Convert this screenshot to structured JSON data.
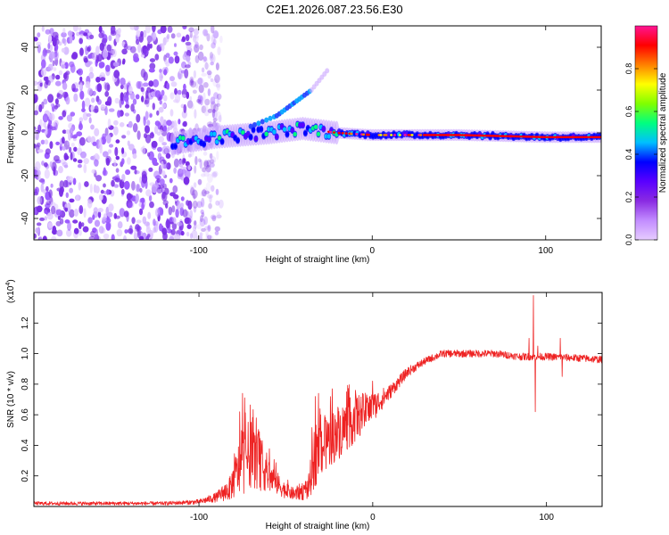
{
  "figure_title": "C2E1.2026.087.23.56.E30",
  "chart_data": [
    {
      "type": "heatmap",
      "title": "C2E1.2026.087.23.56.E30",
      "xlabel": "Height of straight line (km)",
      "ylabel": "Frequency (Hz)",
      "xlim": [
        -195,
        132
      ],
      "ylim": [
        -50,
        50
      ],
      "x_ticks": [
        -100,
        0,
        100
      ],
      "x_tick_labels": [
        "-100",
        "0",
        "100"
      ],
      "y_ticks": [
        -40,
        -20,
        0,
        20,
        40
      ],
      "y_tick_labels": [
        "-40",
        "-20",
        "0",
        "20",
        "40"
      ],
      "colorbar": {
        "label": "Normalized spectral amplitude",
        "range": [
          0,
          1
        ],
        "ticks": [
          0.0,
          0.2,
          0.4,
          0.6,
          0.8
        ],
        "tick_labels": [
          "0.0",
          "0.2",
          "0.4",
          "0.6",
          "0.8"
        ],
        "colors": [
          "#e6ccff",
          "#c28cff",
          "#8a2be2",
          "#5a00ff",
          "#0000ff",
          "#00bfff",
          "#00ff80",
          "#80ff00",
          "#ffff00",
          "#ff8000",
          "#ff0000",
          "#ff1493"
        ]
      },
      "features": {
        "noise_region_x": [
          -195,
          -95
        ],
        "main_line_start_x": -115,
        "main_line_freq_hz": [
          [
            -115,
            -5
          ],
          [
            -90,
            -2
          ],
          [
            -60,
            0
          ],
          [
            -40,
            2
          ],
          [
            -20,
            0
          ],
          [
            0,
            -1
          ],
          [
            50,
            -1
          ],
          [
            100,
            -2
          ],
          [
            132,
            -2
          ]
        ],
        "harmonic_branch": [
          [
            -70,
            3
          ],
          [
            -55,
            8
          ],
          [
            -45,
            14
          ],
          [
            -35,
            20
          ],
          [
            -25,
            30
          ]
        ]
      }
    },
    {
      "type": "line",
      "xlabel": "Height of straight line (km)",
      "ylabel": "SNR (10 * v/v)",
      "y_multiplier_label": "(x10",
      "y_multiplier_exp": "4",
      "xlim": [
        -195,
        132
      ],
      "ylim": [
        0,
        1.4
      ],
      "x_ticks": [
        -100,
        0,
        100
      ],
      "x_tick_labels": [
        "-100",
        "0",
        "100"
      ],
      "y_ticks": [
        0.2,
        0.4,
        0.6,
        0.8,
        1.0,
        1.2
      ],
      "y_tick_labels": [
        "0.2",
        "0.4",
        "0.6",
        "0.8",
        "1.0",
        "1.2"
      ],
      "series": [
        {
          "name": "SNR",
          "color": "#ee2222",
          "envelope": [
            [
              -195,
              0.02,
              0.015
            ],
            [
              -120,
              0.02,
              0.015
            ],
            [
              -100,
              0.03,
              0.02
            ],
            [
              -90,
              0.06,
              0.04
            ],
            [
              -82,
              0.12,
              0.1
            ],
            [
              -75,
              0.3,
              0.28
            ],
            [
              -70,
              0.35,
              0.28
            ],
            [
              -65,
              0.28,
              0.22
            ],
            [
              -58,
              0.18,
              0.12
            ],
            [
              -50,
              0.1,
              0.06
            ],
            [
              -45,
              0.08,
              0.05
            ],
            [
              -37,
              0.12,
              0.1
            ],
            [
              -33,
              0.35,
              0.28
            ],
            [
              -28,
              0.4,
              0.22
            ],
            [
              -20,
              0.48,
              0.22
            ],
            [
              -10,
              0.58,
              0.2
            ],
            [
              0,
              0.65,
              0.12
            ],
            [
              10,
              0.75,
              0.06
            ],
            [
              20,
              0.88,
              0.04
            ],
            [
              30,
              0.95,
              0.03
            ],
            [
              40,
              1.0,
              0.03
            ],
            [
              50,
              1.0,
              0.03
            ],
            [
              70,
              1.0,
              0.03
            ],
            [
              85,
              0.98,
              0.03
            ],
            [
              100,
              0.98,
              0.03
            ],
            [
              120,
              0.97,
              0.03
            ],
            [
              132,
              0.96,
              0.03
            ]
          ],
          "spikes": [
            [
              -75,
              0.74
            ],
            [
              -70,
              0.55
            ],
            [
              -67,
              0.58
            ],
            [
              -33,
              0.72
            ],
            [
              -30,
              0.6
            ],
            [
              -26,
              0.55
            ],
            [
              -20,
              0.65
            ],
            [
              -15,
              0.75
            ],
            [
              -10,
              0.76
            ],
            [
              0,
              0.82
            ],
            [
              90,
              1.1
            ],
            [
              92.5,
              1.38
            ],
            [
              93.5,
              0.62
            ],
            [
              95,
              1.05
            ],
            [
              108,
              1.1
            ],
            [
              109,
              0.85
            ]
          ]
        }
      ]
    }
  ]
}
